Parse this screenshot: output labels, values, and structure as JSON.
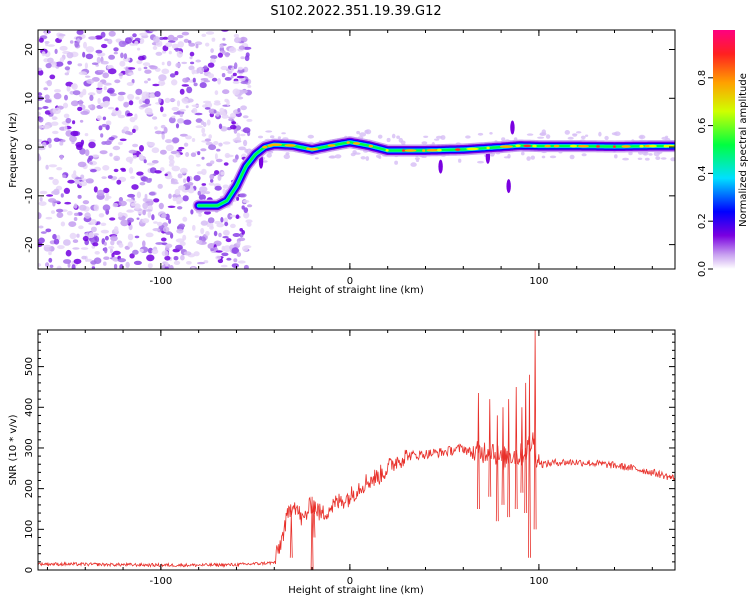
{
  "figure_title": "S102.2022.351.19.39.G12",
  "chart_data": [
    {
      "type": "heatmap",
      "title": "",
      "xlabel": "Height of straight line (km)",
      "ylabel": "Frequency (Hz)",
      "xlim": [
        -165,
        172
      ],
      "ylim": [
        -25,
        24
      ],
      "x_ticks": [
        -100,
        0,
        100
      ],
      "y_ticks": [
        -20,
        -10,
        0,
        10,
        20
      ],
      "grid": false,
      "ridge": {
        "description": "frequency of peak spectral amplitude versus height",
        "x": [
          -80,
          -75,
          -70,
          -65,
          -60,
          -55,
          -50,
          -45,
          -40,
          -30,
          -20,
          -10,
          0,
          10,
          20,
          40,
          60,
          80,
          90,
          100,
          120,
          140,
          160,
          170
        ],
        "y": [
          -12,
          -12,
          -12,
          -11,
          -8,
          -4,
          -1.5,
          0,
          0.5,
          0.3,
          -0.5,
          0.3,
          1,
          0.3,
          -0.7,
          -0.7,
          -0.5,
          0,
          0.3,
          0.2,
          0.2,
          0.1,
          0.2,
          0.2
        ]
      },
      "noise_region": [
        -165,
        -53
      ],
      "colorbar": {
        "label": "Normalized spectral amplitude",
        "range": [
          0,
          1
        ],
        "ticks": [
          0.0,
          0.2,
          0.4,
          0.6,
          0.8
        ],
        "colors": [
          "#ffffff",
          "#c8a0f0",
          "#7a00e0",
          "#0000ff",
          "#00e0ff",
          "#00ff40",
          "#d0ff00",
          "#ffa000",
          "#ff2020",
          "#ff0080"
        ]
      }
    },
    {
      "type": "line",
      "title": "",
      "xlabel": "Height of straight line (km)",
      "ylabel": "SNR (10 * v/v)",
      "xlim": [
        -165,
        172
      ],
      "ylim": [
        0,
        590
      ],
      "x_ticks": [
        -100,
        0,
        100
      ],
      "y_ticks": [
        0,
        100,
        200,
        300,
        400,
        500
      ],
      "grid": false,
      "series": [
        {
          "color": "#e8302a",
          "x": [
            -165,
            -140,
            -120,
            -100,
            -80,
            -60,
            -40,
            -37,
            -33,
            -30,
            -28,
            -25,
            -20,
            -15,
            -10,
            -5,
            0,
            5,
            10,
            15,
            20,
            25,
            30,
            40,
            50,
            60,
            65,
            70,
            75,
            80,
            85,
            90,
            94,
            97,
            99,
            102,
            110,
            120,
            130,
            140,
            150,
            160,
            172
          ],
          "y": [
            15,
            14,
            13,
            12,
            12,
            13,
            18,
            60,
            130,
            170,
            150,
            120,
            165,
            135,
            155,
            170,
            180,
            205,
            220,
            230,
            250,
            270,
            280,
            285,
            290,
            300,
            285,
            290,
            300,
            270,
            285,
            280,
            300,
            320,
            270,
            260,
            265,
            265,
            262,
            257,
            250,
            240,
            225
          ],
          "spikes": [
            {
              "x": 68,
              "min": 150,
              "max": 435
            },
            {
              "x": 74,
              "min": 180,
              "max": 420
            },
            {
              "x": 78,
              "min": 120,
              "max": 380
            },
            {
              "x": 81,
              "min": 160,
              "max": 400
            },
            {
              "x": 84,
              "min": 130,
              "max": 420
            },
            {
              "x": 88,
              "min": 150,
              "max": 450
            },
            {
              "x": 91,
              "min": 190,
              "max": 400
            },
            {
              "x": 93,
              "min": 140,
              "max": 460
            },
            {
              "x": 95,
              "min": 30,
              "max": 480
            },
            {
              "x": 98,
              "min": 100,
              "max": 590
            },
            {
              "x": -31,
              "min": 30,
              "max": 140
            },
            {
              "x": -20,
              "min": 0,
              "max": 180
            },
            {
              "x": -19,
              "min": 80,
              "max": 170
            }
          ]
        }
      ]
    }
  ]
}
